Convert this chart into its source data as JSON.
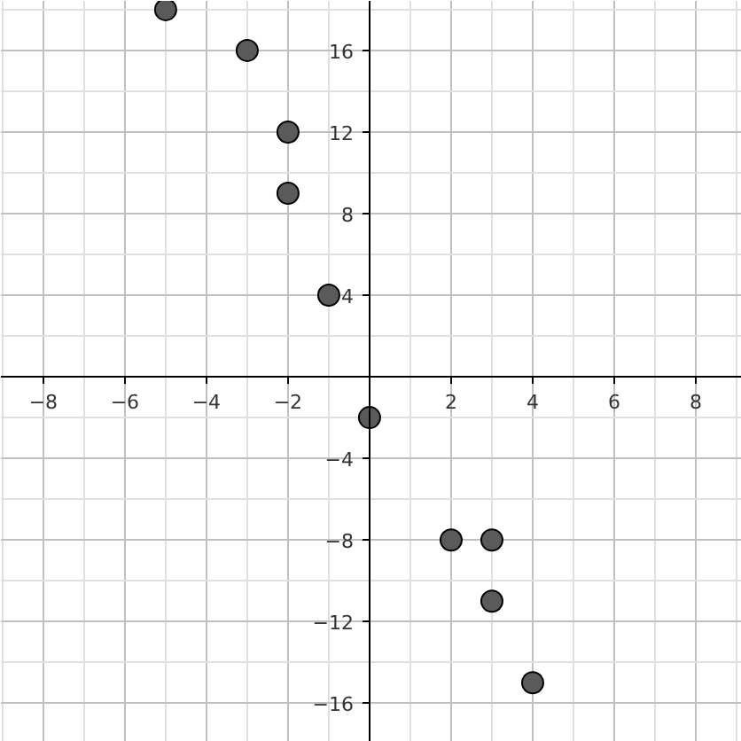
{
  "chart_data": {
    "type": "scatter",
    "x": [
      -5,
      -3,
      -2,
      -2,
      -1,
      0,
      2,
      3,
      3,
      4
    ],
    "values": [
      18,
      16,
      12,
      9,
      4,
      -2,
      -8,
      -8,
      -11,
      -15
    ],
    "color": "#5a5a5a",
    "marker": "circle",
    "xlim": [
      -9.04,
      9.13
    ],
    "ylim": [
      -17.9,
      18.43
    ],
    "xticks": [
      -8,
      -6,
      -4,
      -2,
      2,
      4,
      6,
      8
    ],
    "yticks": [
      -16,
      -12,
      -8,
      -4,
      4,
      8,
      12,
      16
    ],
    "grid": true
  }
}
